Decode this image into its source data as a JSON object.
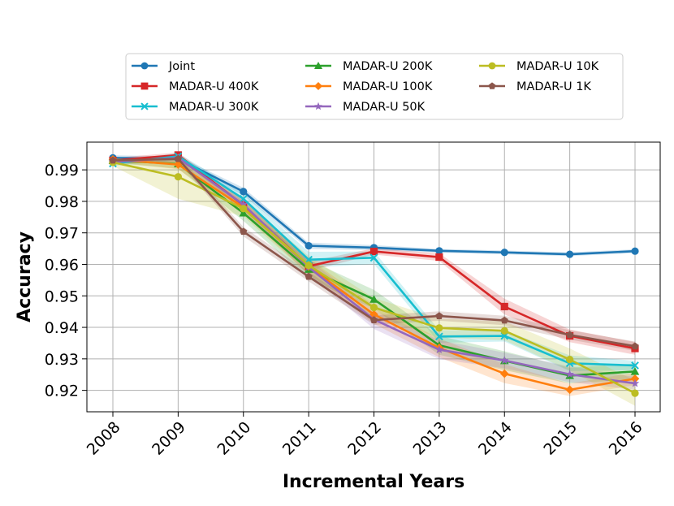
{
  "chart_data": {
    "type": "line",
    "title": "",
    "xlabel": "Incremental Years",
    "ylabel": "Accuracy",
    "categories": [
      "2008",
      "2009",
      "2010",
      "2011",
      "2012",
      "2013",
      "2014",
      "2015",
      "2016"
    ],
    "ylim": [
      0.9132,
      0.9988
    ],
    "yticks": [
      "0.92",
      "0.93",
      "0.94",
      "0.95",
      "0.96",
      "0.97",
      "0.98",
      "0.99"
    ],
    "grid": true,
    "legend_position": "top",
    "series": [
      {
        "name": "Joint",
        "color": "#1f77b4",
        "marker": "circle",
        "values": [
          0.9938,
          0.9935,
          0.9831,
          0.9659,
          0.9653,
          0.9643,
          0.9638,
          0.9632,
          0.9642
        ],
        "band": [
          0.0008,
          0.0008,
          0.0012,
          0.001,
          0.0008,
          0.0006,
          0.0006,
          0.0006,
          0.0006
        ]
      },
      {
        "name": "MADAR-U 400K",
        "color": "#d62728",
        "marker": "square",
        "values": [
          0.993,
          0.9947,
          0.9788,
          0.9594,
          0.9641,
          0.9623,
          0.9466,
          0.9373,
          0.9333
        ],
        "band": [
          0.0008,
          0.0008,
          0.0015,
          0.0015,
          0.001,
          0.0012,
          0.0025,
          0.002,
          0.002
        ]
      },
      {
        "name": "MADAR-U 300K",
        "color": "#17becf",
        "marker": "x",
        "values": [
          0.992,
          0.9943,
          0.9808,
          0.9615,
          0.9621,
          0.9371,
          0.9373,
          0.9286,
          0.9279
        ],
        "band": [
          0.0008,
          0.001,
          0.0018,
          0.0025,
          0.002,
          0.002,
          0.0018,
          0.0025,
          0.0015
        ]
      },
      {
        "name": "MADAR-U 200K",
        "color": "#2ca02c",
        "marker": "triangle",
        "values": [
          0.993,
          0.9919,
          0.9763,
          0.9584,
          0.9489,
          0.9343,
          0.9294,
          0.9247,
          0.926
        ],
        "band": [
          0.0008,
          0.0015,
          0.0025,
          0.003,
          0.003,
          0.003,
          0.003,
          0.0025,
          0.0025
        ]
      },
      {
        "name": "MADAR-U 100K",
        "color": "#ff7f0e",
        "marker": "diamond",
        "values": [
          0.9933,
          0.9917,
          0.9781,
          0.9593,
          0.9441,
          0.9335,
          0.9253,
          0.9202,
          0.9237
        ],
        "band": [
          0.0008,
          0.0015,
          0.002,
          0.0025,
          0.003,
          0.003,
          0.003,
          0.002,
          0.002
        ]
      },
      {
        "name": "MADAR-U 50K",
        "color": "#9467bd",
        "marker": "star",
        "values": [
          0.9925,
          0.9938,
          0.979,
          0.9591,
          0.9425,
          0.9329,
          0.9295,
          0.9251,
          0.9222
        ],
        "band": [
          0.0008,
          0.001,
          0.002,
          0.0025,
          0.003,
          0.003,
          0.0025,
          0.0025,
          0.002
        ]
      },
      {
        "name": "MADAR-U 10K",
        "color": "#bcbd22",
        "marker": "circle",
        "values": [
          0.9924,
          0.9878,
          0.9777,
          0.9597,
          0.9463,
          0.9398,
          0.9389,
          0.9298,
          0.9191
        ],
        "band": [
          0.0012,
          0.007,
          0.0025,
          0.003,
          0.003,
          0.003,
          0.003,
          0.0035,
          0.004
        ]
      },
      {
        "name": "MADAR-U 1K",
        "color": "#8c564b",
        "marker": "pentagon",
        "values": [
          0.993,
          0.9935,
          0.9704,
          0.9561,
          0.9423,
          0.9436,
          0.9422,
          0.9376,
          0.934
        ],
        "band": [
          0.0008,
          0.001,
          0.0015,
          0.0015,
          0.0015,
          0.0015,
          0.0015,
          0.0015,
          0.0015
        ]
      }
    ]
  }
}
